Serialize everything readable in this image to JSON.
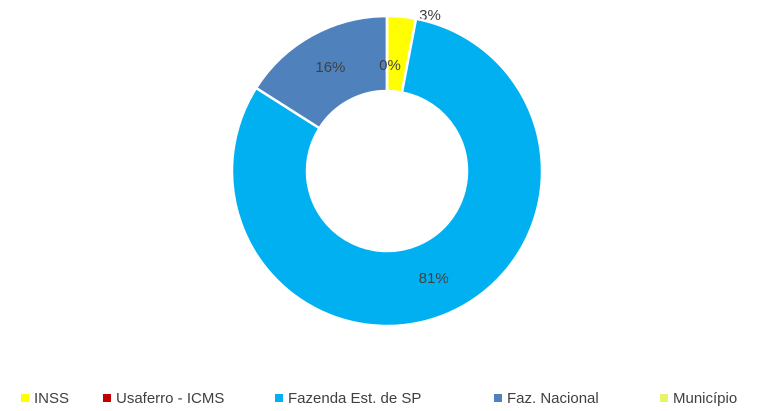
{
  "chart_data": {
    "type": "donut",
    "categories": [
      "INSS",
      "Usaferro - ICMS",
      "Fazenda Est. de SP",
      "Faz. Nacional",
      "Município"
    ],
    "values": [
      3,
      0,
      81,
      16,
      0
    ],
    "value_labels": [
      "3%",
      "0%",
      "81%",
      "16%",
      "0%"
    ],
    "colors": [
      "#ffff00",
      "#c00000",
      "#00b0f0",
      "#4f81bd",
      "#e6f36b"
    ],
    "legend": "bottom"
  }
}
